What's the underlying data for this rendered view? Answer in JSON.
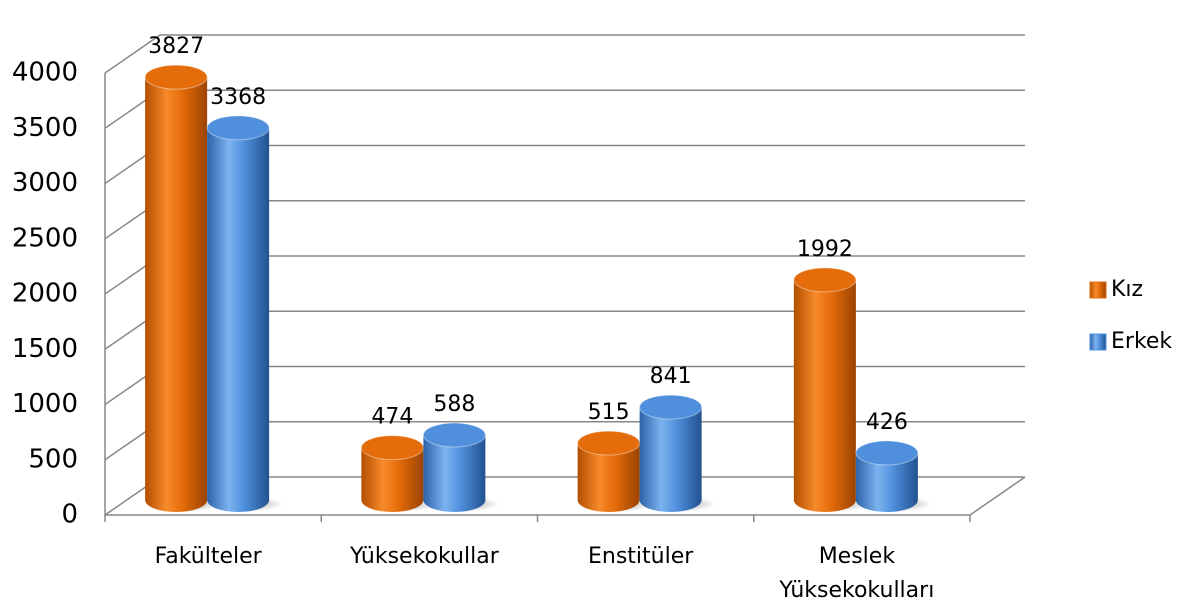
{
  "chart_data": {
    "type": "bar3d",
    "categories": [
      "Fakülteler",
      "Yüksekokullar",
      "Enstitüler",
      "Meslek Yüksekokulları"
    ],
    "series": [
      {
        "name": "Kız",
        "color": "#e46c0a",
        "values": [
          3827,
          474,
          515,
          1992
        ]
      },
      {
        "name": "Erkek",
        "color": "#4f8fdc",
        "values": [
          3368,
          588,
          841,
          426
        ]
      }
    ],
    "ylim": [
      0,
      4000
    ],
    "yticks": [
      0,
      500,
      1000,
      1500,
      2000,
      2500,
      3000,
      3500,
      4000
    ],
    "grid": true,
    "legend": "right"
  }
}
